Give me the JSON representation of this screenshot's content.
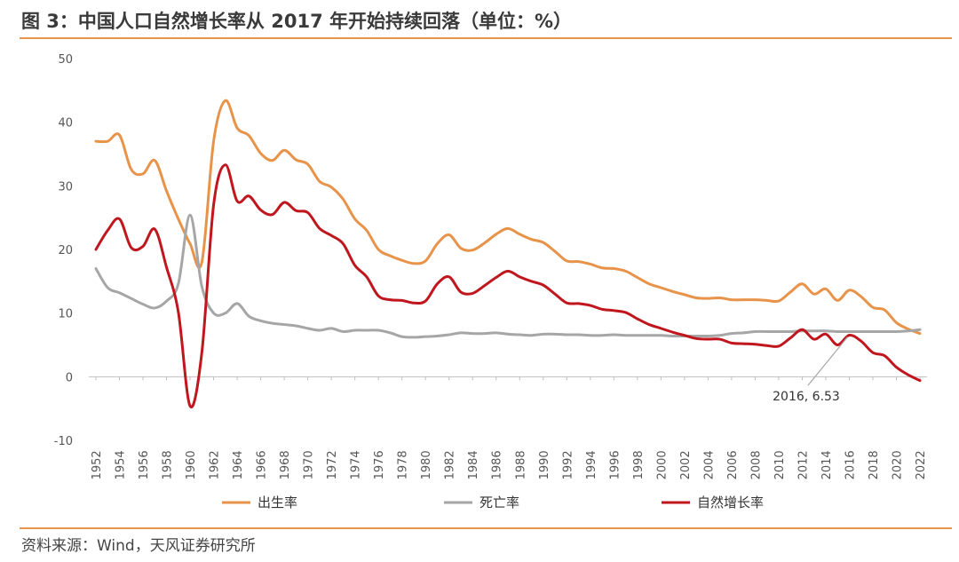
{
  "title": "图 3：中国人口自然增长率从 2017 年开始持续回落（单位：%）",
  "source": "资料来源：Wind，天风证券研究所",
  "colors": {
    "birth": "#E8934A",
    "death": "#A6A6A6",
    "natural": "#C0161E",
    "rule": "#E8964A"
  },
  "chart_data": {
    "type": "line",
    "title": "图 3：中国人口自然增长率从 2017 年开始持续回落（单位：%）",
    "xlabel": "",
    "ylabel": "",
    "ylim": [
      -10,
      50
    ],
    "yticks": [
      -10,
      0,
      10,
      20,
      30,
      40,
      50
    ],
    "grid": false,
    "legend_position": "bottom",
    "x": [
      1952,
      1953,
      1954,
      1955,
      1956,
      1957,
      1958,
      1959,
      1960,
      1961,
      1962,
      1963,
      1964,
      1965,
      1966,
      1967,
      1968,
      1969,
      1970,
      1971,
      1972,
      1973,
      1974,
      1975,
      1976,
      1977,
      1978,
      1979,
      1980,
      1981,
      1982,
      1983,
      1984,
      1985,
      1986,
      1987,
      1988,
      1989,
      1990,
      1991,
      1992,
      1993,
      1994,
      1995,
      1996,
      1997,
      1998,
      1999,
      2000,
      2001,
      2002,
      2003,
      2004,
      2005,
      2006,
      2007,
      2008,
      2009,
      2010,
      2011,
      2012,
      2013,
      2014,
      2015,
      2016,
      2017,
      2018,
      2019,
      2020,
      2021,
      2022
    ],
    "xticks": [
      1952,
      1954,
      1956,
      1958,
      1960,
      1962,
      1964,
      1966,
      1968,
      1970,
      1972,
      1974,
      1976,
      1978,
      1980,
      1982,
      1984,
      1986,
      1988,
      1990,
      1992,
      1994,
      1996,
      1998,
      2000,
      2002,
      2004,
      2006,
      2008,
      2010,
      2012,
      2014,
      2016,
      2018,
      2020,
      2022
    ],
    "series": [
      {
        "name": "出生率",
        "color": "#E8934A",
        "values": [
          37.0,
          37.0,
          38.0,
          32.6,
          31.9,
          34.0,
          29.2,
          24.8,
          20.9,
          18.0,
          37.0,
          43.4,
          39.1,
          37.9,
          35.1,
          34.0,
          35.6,
          34.1,
          33.4,
          30.7,
          29.8,
          27.9,
          24.8,
          23.0,
          20.0,
          19.0,
          18.3,
          17.8,
          18.2,
          20.9,
          22.3,
          20.2,
          19.9,
          21.0,
          22.4,
          23.3,
          22.4,
          21.6,
          21.1,
          19.7,
          18.2,
          18.1,
          17.7,
          17.1,
          17.0,
          16.6,
          15.6,
          14.6,
          14.0,
          13.4,
          12.9,
          12.4,
          12.3,
          12.4,
          12.1,
          12.1,
          12.1,
          12.0,
          11.9,
          13.3,
          14.6,
          13.0,
          13.8,
          12.0,
          13.6,
          12.6,
          10.9,
          10.5,
          8.5,
          7.5,
          6.8
        ]
      },
      {
        "name": "死亡率",
        "color": "#A6A6A6",
        "values": [
          17.0,
          14.0,
          13.2,
          12.3,
          11.4,
          10.8,
          11.9,
          14.6,
          25.4,
          14.2,
          10.0,
          10.0,
          11.5,
          9.5,
          8.8,
          8.4,
          8.2,
          8.0,
          7.6,
          7.3,
          7.6,
          7.1,
          7.3,
          7.3,
          7.3,
          6.9,
          6.3,
          6.2,
          6.3,
          6.4,
          6.6,
          6.9,
          6.8,
          6.8,
          6.9,
          6.7,
          6.6,
          6.5,
          6.7,
          6.7,
          6.6,
          6.6,
          6.5,
          6.5,
          6.6,
          6.5,
          6.5,
          6.5,
          6.5,
          6.4,
          6.4,
          6.4,
          6.4,
          6.5,
          6.8,
          6.9,
          7.1,
          7.1,
          7.1,
          7.1,
          7.2,
          7.2,
          7.2,
          7.1,
          7.1,
          7.1,
          7.1,
          7.1,
          7.1,
          7.2,
          7.4
        ]
      },
      {
        "name": "自然增长率",
        "color": "#C0161E",
        "values": [
          20.0,
          23.0,
          24.8,
          20.3,
          20.5,
          23.2,
          17.2,
          10.2,
          -4.6,
          3.8,
          27.0,
          33.3,
          27.6,
          28.4,
          26.2,
          25.5,
          27.4,
          26.1,
          25.8,
          23.3,
          22.2,
          20.9,
          17.5,
          15.7,
          12.7,
          12.1,
          12.0,
          11.6,
          11.9,
          14.6,
          15.7,
          13.3,
          13.1,
          14.3,
          15.6,
          16.6,
          15.7,
          15.0,
          14.4,
          13.0,
          11.6,
          11.5,
          11.2,
          10.6,
          10.4,
          10.1,
          9.1,
          8.2,
          7.6,
          7.0,
          6.5,
          6.0,
          5.9,
          5.9,
          5.3,
          5.2,
          5.1,
          4.9,
          4.8,
          6.1,
          7.4,
          5.9,
          6.7,
          5.0,
          6.53,
          5.6,
          3.8,
          3.3,
          1.5,
          0.3,
          -0.6
        ]
      }
    ],
    "annotations": [
      {
        "text": "2016, 6.53",
        "x": 2016,
        "y": 6.53
      }
    ]
  }
}
